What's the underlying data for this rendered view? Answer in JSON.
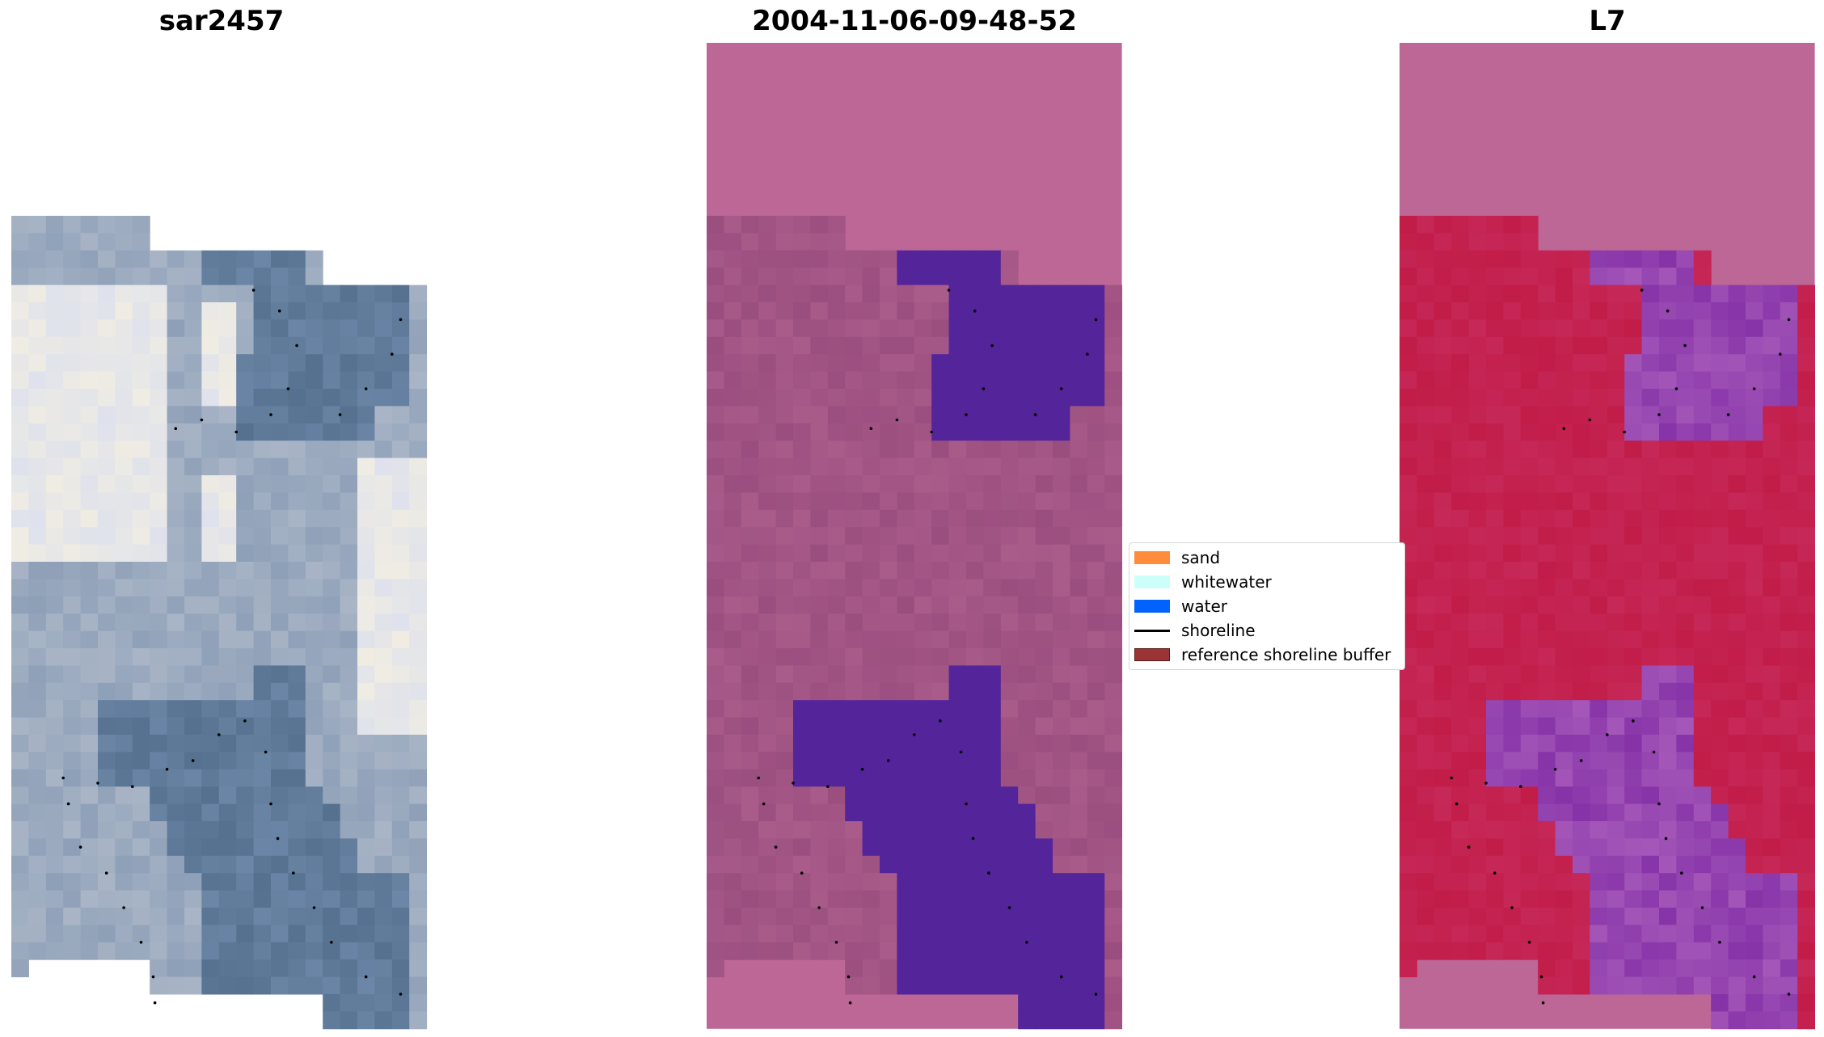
{
  "panels": [
    {
      "title": "sar2457"
    },
    {
      "title": "2004-11-06-09-48-52"
    },
    {
      "title": "L7"
    }
  ],
  "legend": {
    "items": [
      {
        "label": "sand",
        "color": "#ff8c3a",
        "kind": "patch"
      },
      {
        "label": "whitewater",
        "color": "#ccfffa",
        "kind": "patch"
      },
      {
        "label": "water",
        "color": "#0062ff",
        "kind": "patch"
      },
      {
        "label": "shoreline",
        "color": "#000000",
        "kind": "line"
      },
      {
        "label": "reference shoreline buffer",
        "color": "#9b3535",
        "kind": "patch"
      }
    ]
  },
  "colors": {
    "rgb_land_light": "#dfe2ec",
    "rgb_land_mid": "#a9b5c6",
    "rgb_water": "#56708f",
    "class_bg": "#bc6796",
    "class_land": "#9a4e7f",
    "class_water": "#53249a",
    "mndwi_bg": "#bc6796",
    "mndwi_land": "#c21c48",
    "mndwi_water": "#8633a8"
  }
}
